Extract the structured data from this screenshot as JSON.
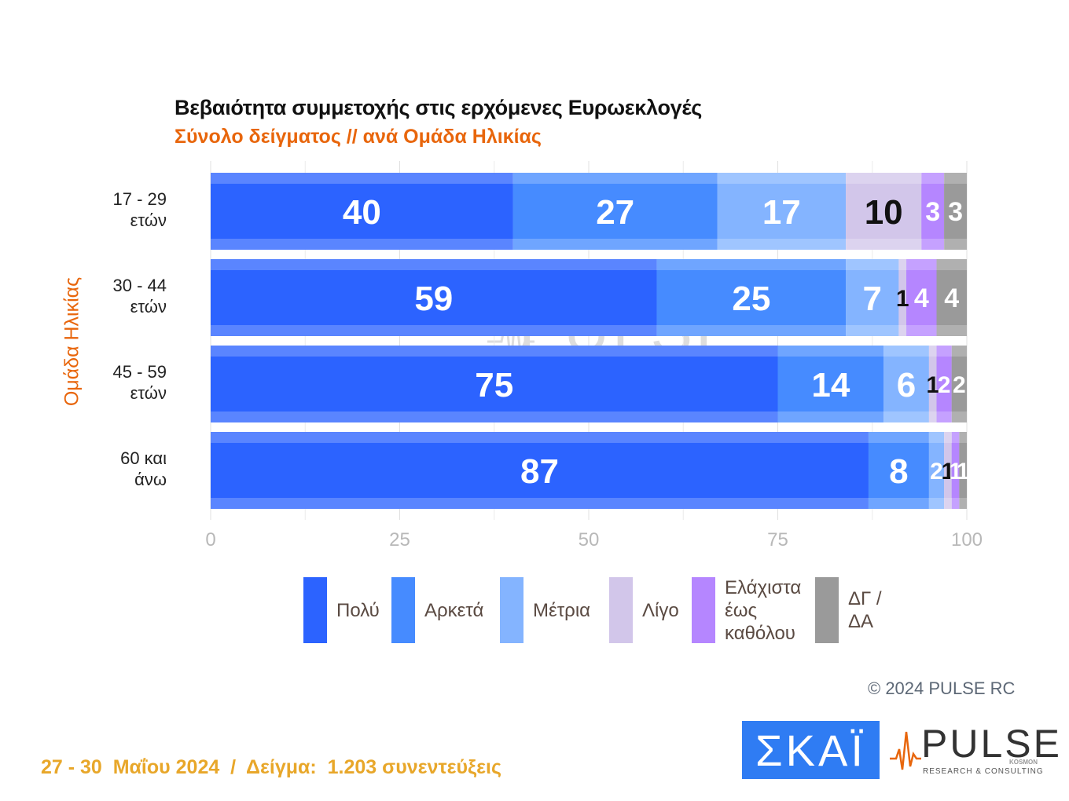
{
  "chart_data": {
    "type": "bar",
    "orientation": "horizontal",
    "stacked": true,
    "title": "Βεβαιότητα συμμετοχής στις ερχόμενες Ευρωεκλογές",
    "subtitle": "Σύνολο δείγματος // ανά Ομάδα Ηλικίας",
    "ylabel": "Ομάδα Ηλικίας",
    "categories": [
      "17 - 29\nετών",
      "30 - 44\nετών",
      "45 - 59\nετών",
      "60 και\nάνω"
    ],
    "series": [
      {
        "name": "Πολύ",
        "color": "#2c63ff",
        "label_color": "#ffffff",
        "values": [
          40,
          59,
          75,
          87
        ]
      },
      {
        "name": "Αρκετά",
        "color": "#468bff",
        "label_color": "#ffffff",
        "values": [
          27,
          25,
          14,
          8
        ]
      },
      {
        "name": "Μέτρια",
        "color": "#84b4ff",
        "label_color": "#ffffff",
        "values": [
          17,
          7,
          6,
          2
        ]
      },
      {
        "name": "Λίγο",
        "color": "#d2c6ea",
        "label_color": "#111111",
        "values": [
          10,
          1,
          1,
          1
        ]
      },
      {
        "name": "Ελάχιστα\nέως\nκαθόλου",
        "color": "#b586ff",
        "label_color": "#ffffff",
        "values": [
          3,
          4,
          2,
          1
        ]
      },
      {
        "name": "ΔΓ /\nΔΑ",
        "color": "#9a9a9a",
        "label_color": "#ffffff",
        "values": [
          3,
          4,
          2,
          1
        ]
      }
    ],
    "xlim": [
      0,
      100
    ],
    "xticks": [
      0,
      25,
      50,
      75,
      100
    ],
    "grid": true,
    "legend_position": "bottom"
  },
  "copyright": "© 2024 PULSE RC",
  "footer": "27 - 30  Μαΐου 2024  /  Δείγμα:  1.203 συνεντεύξεις",
  "logos": {
    "skai": "ΣΚΑΪ",
    "pulse": "PULSE",
    "pulse_sub": "RESEARCH & CONSULTING",
    "pulse_kosmon": "KOSMON",
    "pulse_icon": "pulse-wave-icon"
  }
}
